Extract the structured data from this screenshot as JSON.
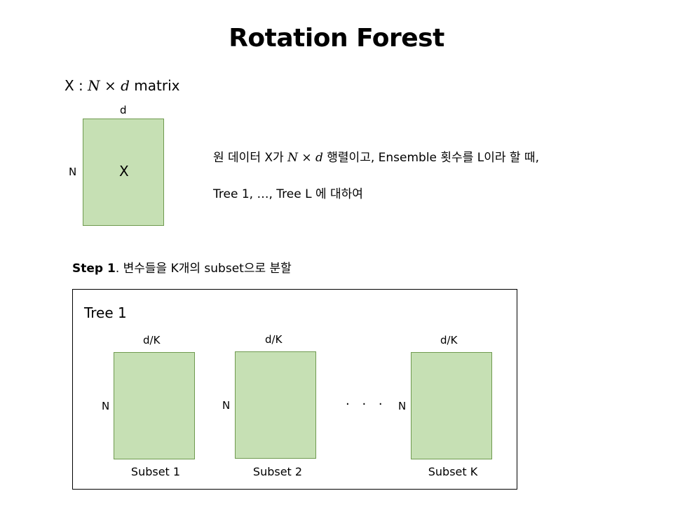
{
  "title": "Rotation Forest",
  "matrix_def": {
    "prefix": "X : ",
    "formula": "N × d",
    "suffix": " matrix"
  },
  "main_matrix": {
    "top_label": "d",
    "left_label": "N",
    "center_label": "X"
  },
  "description": {
    "line1_part1": "원 데이터 X가 ",
    "line1_formula": "N × d",
    "line1_part2": " 행렬이고,  Ensemble 횟수를 L이라 할 때,",
    "line2": "Tree 1, …, Tree L 에 대하여"
  },
  "step": {
    "bold": "Step 1",
    "text": ". 변수들을 K개의 subset으로 분할"
  },
  "tree": {
    "label": "Tree 1",
    "ellipsis": "· · ·",
    "subsets": [
      {
        "top_label": "d/K",
        "left_label": "N",
        "bottom_label": "Subset 1"
      },
      {
        "top_label": "d/K",
        "left_label": "N",
        "bottom_label": "Subset 2"
      },
      {
        "top_label": "d/K",
        "left_label": "N",
        "bottom_label": "Subset K"
      }
    ]
  },
  "colors": {
    "box_fill": "#c6e0b4",
    "box_border": "#6f9a4f"
  }
}
